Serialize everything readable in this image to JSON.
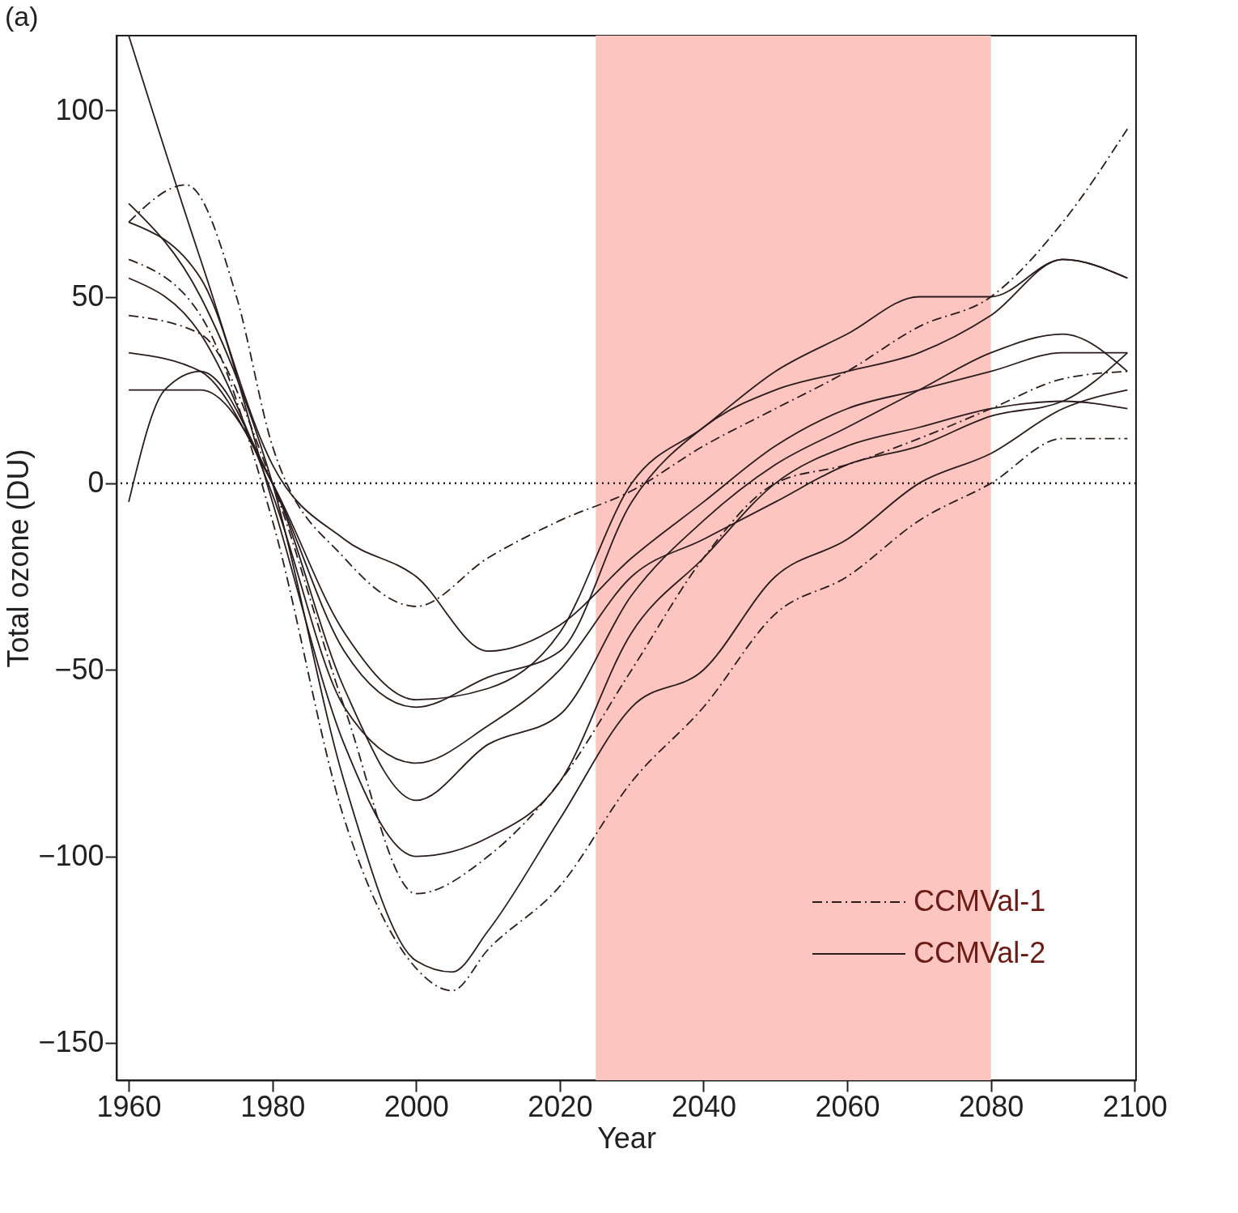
{
  "chart_data": {
    "type": "line",
    "title": "(a)",
    "xlabel": "Year",
    "ylabel": "Total ozone (DU)",
    "xlim": [
      1958.3,
      2100.2
    ],
    "ylim": [
      -160,
      120
    ],
    "xticks": [
      1960,
      1980,
      2000,
      2020,
      2040,
      2060,
      2080,
      2100
    ],
    "yticks": [
      -150,
      -100,
      -50,
      0,
      50,
      100
    ],
    "grid": false,
    "legend": "bottom right",
    "bands": [
      {
        "axis": "x",
        "from": 2025,
        "to": 2080,
        "color": "#fcc5c0"
      }
    ],
    "ref_lines": [
      {
        "axis": "y",
        "value": 0,
        "line_style": "dotted"
      }
    ],
    "series": [
      {
        "name": "CCMVal-1",
        "color": "#2a1c1c",
        "line_style": "dashdot",
        "x": [
          1960,
          1968,
          1975,
          1980,
          1990,
          2000,
          2010,
          2020,
          2030,
          2040,
          2050,
          2060,
          2070,
          2080,
          2090,
          2099
        ],
        "values": [
          70,
          80,
          50,
          10,
          -20,
          -33,
          -20,
          -10,
          -2,
          10,
          20,
          30,
          42,
          50,
          70,
          95
        ]
      },
      {
        "color": "#2a1c1c",
        "line_style": "dashdot",
        "x": [
          1960,
          1970,
          1980,
          1990,
          2000,
          2005,
          2010,
          2020,
          2030,
          2040,
          2050,
          2060,
          2070,
          2080,
          2090,
          2099
        ],
        "values": [
          60,
          45,
          -10,
          -90,
          -130,
          -136,
          -125,
          -108,
          -80,
          -60,
          -35,
          -25,
          -10,
          0,
          12,
          12
        ]
      },
      {
        "color": "#2a1c1c",
        "line_style": "dashdot",
        "x": [
          1960,
          1970,
          1980,
          1990,
          2000,
          2010,
          2020,
          2030,
          2040,
          2050,
          2060,
          2070,
          2080,
          2090,
          2099
        ],
        "values": [
          45,
          40,
          0,
          -60,
          -110,
          -100,
          -80,
          -50,
          -20,
          0,
          5,
          12,
          20,
          28,
          30
        ]
      },
      {
        "name": "CCMVal-2",
        "color": "#2a1c1c",
        "line_style": "solid",
        "x": [
          1960,
          1970,
          1980,
          1990,
          2000,
          2010,
          2020,
          2030,
          2040,
          2050,
          2060,
          2070,
          2080,
          2090,
          2099
        ],
        "values": [
          120,
          60,
          5,
          -15,
          -25,
          -45,
          -38,
          -20,
          -5,
          10,
          20,
          25,
          30,
          35,
          35
        ]
      },
      {
        "color": "#2a1c1c",
        "line_style": "solid",
        "x": [
          1960,
          1965,
          1970,
          1980,
          1990,
          2000,
          2010,
          2020,
          2030,
          2040,
          2050,
          2060,
          2070,
          2080,
          2090,
          2099
        ],
        "values": [
          -5,
          25,
          30,
          0,
          -45,
          -60,
          -52,
          -45,
          -5,
          15,
          25,
          30,
          35,
          45,
          60,
          55
        ]
      },
      {
        "color": "#2a1c1c",
        "line_style": "solid",
        "x": [
          1960,
          1970,
          1980,
          1990,
          2000,
          2010,
          2020,
          2030,
          2040,
          2050,
          2060,
          2070,
          2080,
          2090,
          2099
        ],
        "values": [
          70,
          55,
          -5,
          -70,
          -100,
          -95,
          -80,
          -40,
          -20,
          0,
          10,
          15,
          20,
          22,
          20
        ]
      },
      {
        "color": "#2a1c1c",
        "line_style": "solid",
        "x": [
          1960,
          1970,
          1980,
          1990,
          2000,
          2005,
          2010,
          2020,
          2030,
          2040,
          2050,
          2060,
          2070,
          2080,
          2090,
          2099
        ],
        "values": [
          75,
          50,
          0,
          -80,
          -128,
          -131,
          -120,
          -90,
          -60,
          -50,
          -25,
          -15,
          0,
          8,
          20,
          25
        ]
      },
      {
        "color": "#2a1c1c",
        "line_style": "solid",
        "x": [
          1960,
          1970,
          1980,
          1990,
          2000,
          2010,
          2020,
          2030,
          2040,
          2050,
          2060,
          2070,
          2080,
          2090,
          2099
        ],
        "values": [
          35,
          30,
          0,
          -40,
          -58,
          -55,
          -40,
          0,
          15,
          30,
          40,
          50,
          50,
          60,
          55
        ]
      },
      {
        "color": "#2a1c1c",
        "line_style": "solid",
        "x": [
          1960,
          1970,
          1980,
          1990,
          2000,
          2010,
          2020,
          2030,
          2040,
          2050,
          2060,
          2070,
          2080,
          2090,
          2099
        ],
        "values": [
          25,
          25,
          0,
          -55,
          -85,
          -70,
          -62,
          -30,
          -10,
          5,
          15,
          25,
          35,
          40,
          30
        ]
      },
      {
        "color": "#2a1c1c",
        "line_style": "solid",
        "x": [
          1960,
          1970,
          1980,
          1990,
          2000,
          2010,
          2020,
          2030,
          2040,
          2050,
          2060,
          2070,
          2080,
          2090,
          2099
        ],
        "values": [
          55,
          40,
          -3,
          -60,
          -75,
          -65,
          -50,
          -25,
          -15,
          -5,
          5,
          10,
          18,
          22,
          35
        ]
      }
    ]
  }
}
